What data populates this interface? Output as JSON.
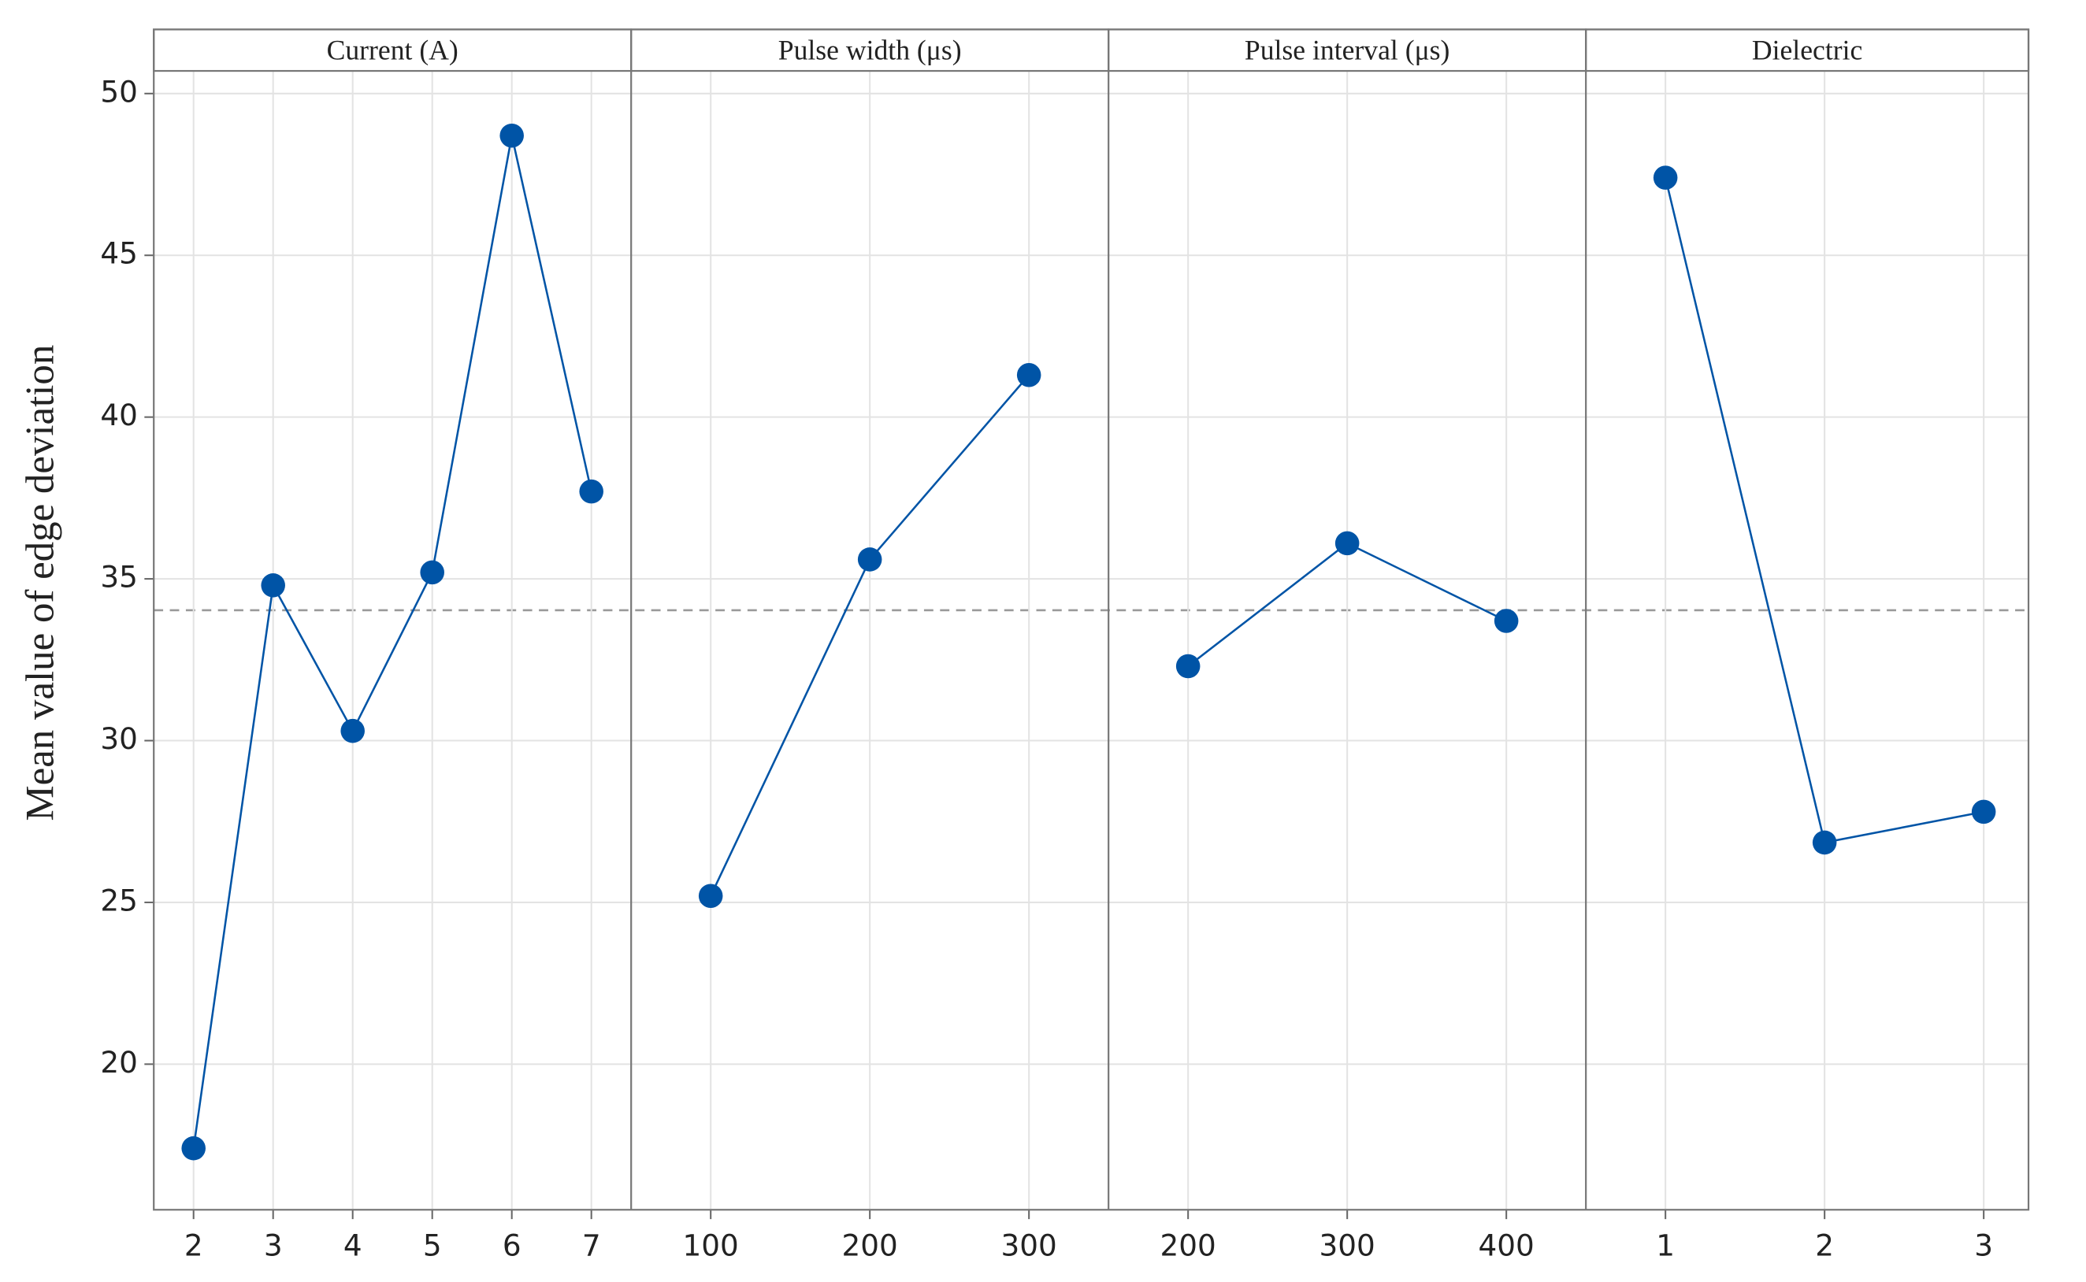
{
  "chart_data": {
    "type": "line",
    "y_label": "Mean value of edge deviation",
    "color": "#0054a6",
    "ylim": [
      15.5,
      50.7
    ],
    "yticks": [
      20,
      25,
      30,
      35,
      40,
      45,
      50
    ],
    "grid": true,
    "reference_line": 34.03,
    "panels": [
      {
        "title": "Current (A)",
        "categories": [
          2,
          3,
          4,
          5,
          6,
          7
        ],
        "values": [
          17.4,
          34.8,
          30.3,
          35.2,
          48.7,
          37.7
        ]
      },
      {
        "title": "Pulse width (μs)",
        "categories": [
          100,
          200,
          300
        ],
        "values": [
          25.2,
          35.6,
          41.3
        ]
      },
      {
        "title": "Pulse interval (μs)",
        "categories": [
          200,
          300,
          400
        ],
        "values": [
          32.3,
          36.1,
          33.7
        ]
      },
      {
        "title": "Dielectric",
        "categories": [
          1,
          2,
          3
        ],
        "values": [
          47.4,
          26.85,
          27.8
        ]
      }
    ]
  }
}
